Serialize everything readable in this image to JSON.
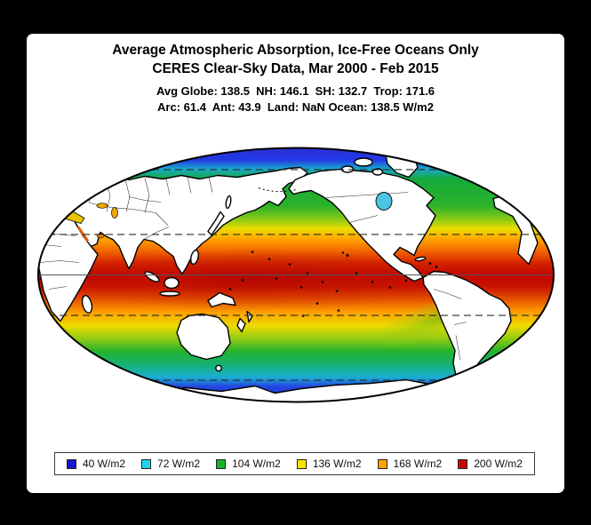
{
  "window": {
    "background": "#000000",
    "panel_background": "#ffffff"
  },
  "header": {
    "title": "Average Atmospheric Absorption, Ice-Free Oceans Only",
    "subtitle": "CERES Clear-Sky Data, Mar 2000 - Feb 2015",
    "stats_line1": "Avg Globe: 138.5  NH: 146.1  SH: 132.7  Trop: 171.6",
    "stats_line2": "Arc: 61.4  Ant: 43.9  Land: NaN Ocean: 138.5 W/m2"
  },
  "chart_data": {
    "type": "heatmap",
    "projection": "mollweide",
    "title": "Average Atmospheric Absorption, Ice-Free Oceans Only",
    "subtitle": "CERES Clear-Sky Data, Mar 2000 - Feb 2015",
    "units": "W/m2",
    "land_value": "NaN (masked, shown white)",
    "stats": {
      "avg_globe": 138.5,
      "nh": 146.1,
      "sh": 132.7,
      "tropics": 171.6,
      "arctic": 61.4,
      "antarctic": 43.9,
      "land": "NaN",
      "ocean": 138.5
    },
    "legend_position": "bottom",
    "legend": [
      {
        "label": "40 W/m2",
        "value": 40,
        "color": "#1616ce"
      },
      {
        "label": "72 W/m2",
        "value": 72,
        "color": "#1ed3e8"
      },
      {
        "label": "104 W/m2",
        "value": 104,
        "color": "#14b42c"
      },
      {
        "label": "136 W/m2",
        "value": 136,
        "color": "#f2e600"
      },
      {
        "label": "168 W/m2",
        "value": 168,
        "color": "#ffa408"
      },
      {
        "label": "200 W/m2",
        "value": 200,
        "color": "#c40a00"
      }
    ],
    "zonal_values": [
      {
        "lat": 90,
        "value": 40
      },
      {
        "lat": 75,
        "value": 46
      },
      {
        "lat": 66.5,
        "value": 61
      },
      {
        "lat": 60,
        "value": 80
      },
      {
        "lat": 50,
        "value": 100
      },
      {
        "lat": 45,
        "value": 106
      },
      {
        "lat": 40,
        "value": 118
      },
      {
        "lat": 35,
        "value": 132
      },
      {
        "lat": 30,
        "value": 148
      },
      {
        "lat": 25,
        "value": 162
      },
      {
        "lat": 20,
        "value": 178
      },
      {
        "lat": 10,
        "value": 196
      },
      {
        "lat": 0,
        "value": 200
      },
      {
        "lat": -10,
        "value": 190
      },
      {
        "lat": -20,
        "value": 172
      },
      {
        "lat": -25,
        "value": 158
      },
      {
        "lat": -30,
        "value": 146
      },
      {
        "lat": -35,
        "value": 133
      },
      {
        "lat": -40,
        "value": 120
      },
      {
        "lat": -45,
        "value": 108
      },
      {
        "lat": -55,
        "value": 88
      },
      {
        "lat": -60,
        "value": 76
      },
      {
        "lat": -66.5,
        "value": 55
      },
      {
        "lat": -75,
        "value": 44
      },
      {
        "lat": -90,
        "value": 40
      }
    ],
    "gradient_stops": [
      [
        0.0,
        "#2b2fd0"
      ],
      [
        0.05,
        "#2238e6"
      ],
      [
        0.085,
        "#19a8cc"
      ],
      [
        0.125,
        "#16aa3c"
      ],
      [
        0.23,
        "#2bb228"
      ],
      [
        0.285,
        "#8fcb14"
      ],
      [
        0.32,
        "#eddc00"
      ],
      [
        0.36,
        "#ffa400"
      ],
      [
        0.41,
        "#f16100"
      ],
      [
        0.455,
        "#d42100"
      ],
      [
        0.5,
        "#c00600"
      ],
      [
        0.545,
        "#c81200"
      ],
      [
        0.59,
        "#e24a00"
      ],
      [
        0.645,
        "#fe9e00"
      ],
      [
        0.7,
        "#ecdc00"
      ],
      [
        0.75,
        "#8fcb14"
      ],
      [
        0.8,
        "#22b22c"
      ],
      [
        0.855,
        "#16b17b"
      ],
      [
        0.9,
        "#1baed2"
      ],
      [
        0.935,
        "#2349e2"
      ],
      [
        1.0,
        "#2b2fd0"
      ]
    ],
    "gridlines": {
      "equator_style": "solid",
      "dashed_latitudes": [
        66.5,
        23.5,
        -23.5,
        -66.5
      ],
      "solid_fractions": [
        0.5
      ],
      "dashed_fractions": [
        0.0855,
        0.3407,
        0.6593,
        0.9145
      ]
    }
  },
  "map": {
    "land_color": "#ffffff",
    "coast_color": "#000000",
    "outline_color": "#000000",
    "equator_color": "#555555",
    "dashed_line_color": "#2a2a2a"
  }
}
